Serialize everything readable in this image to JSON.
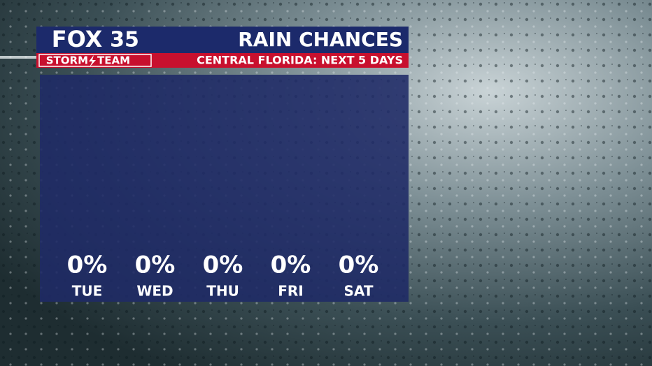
{
  "logo": {
    "brand": "FOX",
    "channel": "35",
    "team_left": "STORM",
    "team_right": "TEAM"
  },
  "chart_data": {
    "type": "bar",
    "title": "RAIN CHANCES",
    "subtitle": "CENTRAL FLORIDA: NEXT 5 DAYS",
    "categories": [
      "TUE",
      "WED",
      "THU",
      "FRI",
      "SAT"
    ],
    "values": [
      0,
      0,
      0,
      0,
      0
    ],
    "value_labels": [
      "0%",
      "0%",
      "0%",
      "0%",
      "0%"
    ],
    "color": "#ffffff"
  }
}
